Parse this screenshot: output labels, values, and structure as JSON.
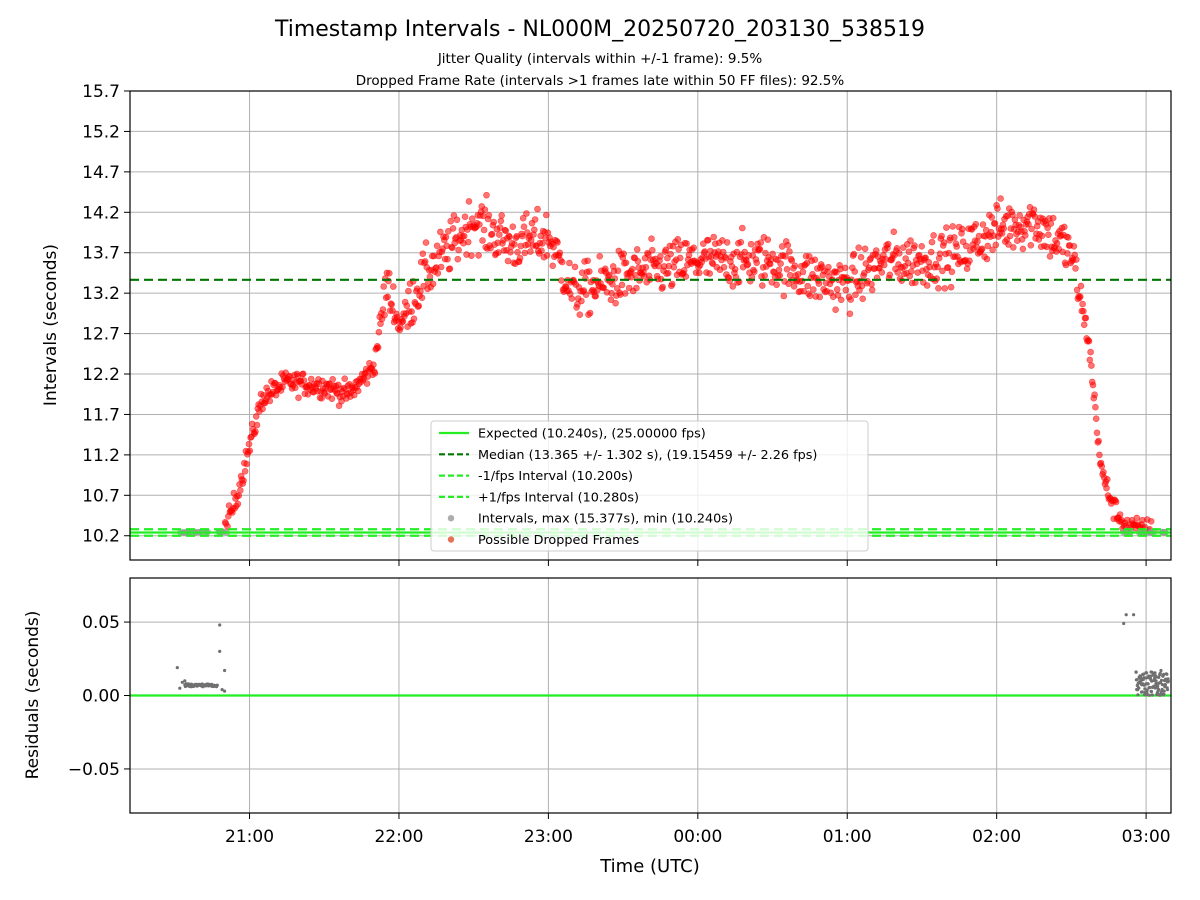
{
  "title": "Timestamp Intervals - NL000M_20250720_203130_538519",
  "subtitle_line1": "Jitter Quality (intervals within +/-1 frame): 9.5%",
  "subtitle_line2": "Dropped Frame Rate (intervals >1 frames late within 50 FF files): 92.5%",
  "colors": {
    "expected": "#22ee22",
    "median": "#007700",
    "fps_band": "#22ee22",
    "intervals": "#999999",
    "dropped": "#ff0000",
    "residual_points": "#707070",
    "grid": "#b0b0b0"
  },
  "chart_data": [
    {
      "type": "scatter",
      "name": "intervals",
      "ylabel": "Intervals (seconds)",
      "xlabel": "",
      "ylim": [
        9.9,
        15.7
      ],
      "yticks": [
        "10.2",
        "10.7",
        "11.2",
        "11.7",
        "12.2",
        "12.7",
        "13.2",
        "13.7",
        "14.2",
        "14.7",
        "15.2",
        "15.7"
      ],
      "grid": true,
      "legend_position": "lower-center",
      "legend": [
        "Expected (10.240s), (25.00000 fps)",
        "Median (13.365 +/- 1.302 s), (19.15459 +/- 2.26 fps)",
        "-1/fps Interval (10.200s)",
        "+1/fps Interval (10.280s)",
        "Intervals, max (15.377s), min (10.240s)",
        "Possible Dropped Frames"
      ],
      "reference_lines": {
        "expected": 10.24,
        "median": 13.365,
        "minus_fps": 10.2,
        "plus_fps": 10.28
      },
      "stats": {
        "max": 15.377,
        "min": 10.24
      },
      "trend_profile": [
        [
          "20:31",
          10.24
        ],
        [
          "20:50",
          10.25
        ],
        [
          "20:55",
          10.7
        ],
        [
          "21:05",
          11.9
        ],
        [
          "21:15",
          12.1
        ],
        [
          "21:30",
          12.05
        ],
        [
          "21:40",
          11.95
        ],
        [
          "21:50",
          12.3
        ],
        [
          "21:55",
          13.3
        ],
        [
          "22:00",
          12.8
        ],
        [
          "22:10",
          13.4
        ],
        [
          "22:30",
          14.1
        ],
        [
          "22:45",
          13.8
        ],
        [
          "23:00",
          13.9
        ],
        [
          "23:10",
          13.2
        ],
        [
          "23:30",
          13.4
        ],
        [
          "00:00",
          13.6
        ],
        [
          "00:30",
          13.6
        ],
        [
          "00:45",
          13.4
        ],
        [
          "01:00",
          13.3
        ],
        [
          "01:15",
          13.6
        ],
        [
          "01:30",
          13.6
        ],
        [
          "01:45",
          13.7
        ],
        [
          "02:00",
          14.0
        ],
        [
          "02:15",
          14.1
        ],
        [
          "02:30",
          13.7
        ],
        [
          "02:37",
          12.6
        ],
        [
          "02:42",
          11.0
        ],
        [
          "02:47",
          10.55
        ],
        [
          "02:52",
          10.3
        ],
        [
          "03:08",
          10.24
        ]
      ]
    },
    {
      "type": "scatter",
      "name": "residuals",
      "ylabel": "Residuals (seconds)",
      "xlabel": "Time (UTC)",
      "ylim": [
        -0.08,
        0.08
      ],
      "yticks": [
        "−0.05",
        "0.00",
        "0.05"
      ],
      "xticks": [
        "21:00",
        "22:00",
        "23:00",
        "00:00",
        "01:00",
        "02:00",
        "03:00"
      ],
      "grid": true,
      "zero_line": 0.0,
      "points": [
        [
          "20:31",
          0.019
        ],
        [
          "20:32",
          0.005
        ],
        [
          "20:33",
          0.009
        ],
        [
          "20:34",
          0.01
        ],
        [
          "20:35",
          0.008
        ],
        [
          "20:38",
          0.007
        ],
        [
          "20:41",
          0.007
        ],
        [
          "20:44",
          0.007
        ],
        [
          "20:47",
          0.007
        ],
        [
          "20:48",
          0.048
        ],
        [
          "20:48",
          0.03
        ],
        [
          "20:49",
          0.004
        ],
        [
          "20:50",
          0.017
        ],
        [
          "20:50",
          0.003
        ],
        [
          "02:51",
          0.049
        ],
        [
          "02:52",
          0.055
        ],
        [
          "02:55",
          0.055
        ],
        [
          "02:56",
          0.016
        ],
        [
          "02:58",
          0.008
        ],
        [
          "03:00",
          0.012
        ],
        [
          "03:02",
          0.016
        ],
        [
          "03:04",
          0.01
        ],
        [
          "03:06",
          0.017
        ],
        [
          "03:07",
          0.014
        ]
      ]
    }
  ]
}
